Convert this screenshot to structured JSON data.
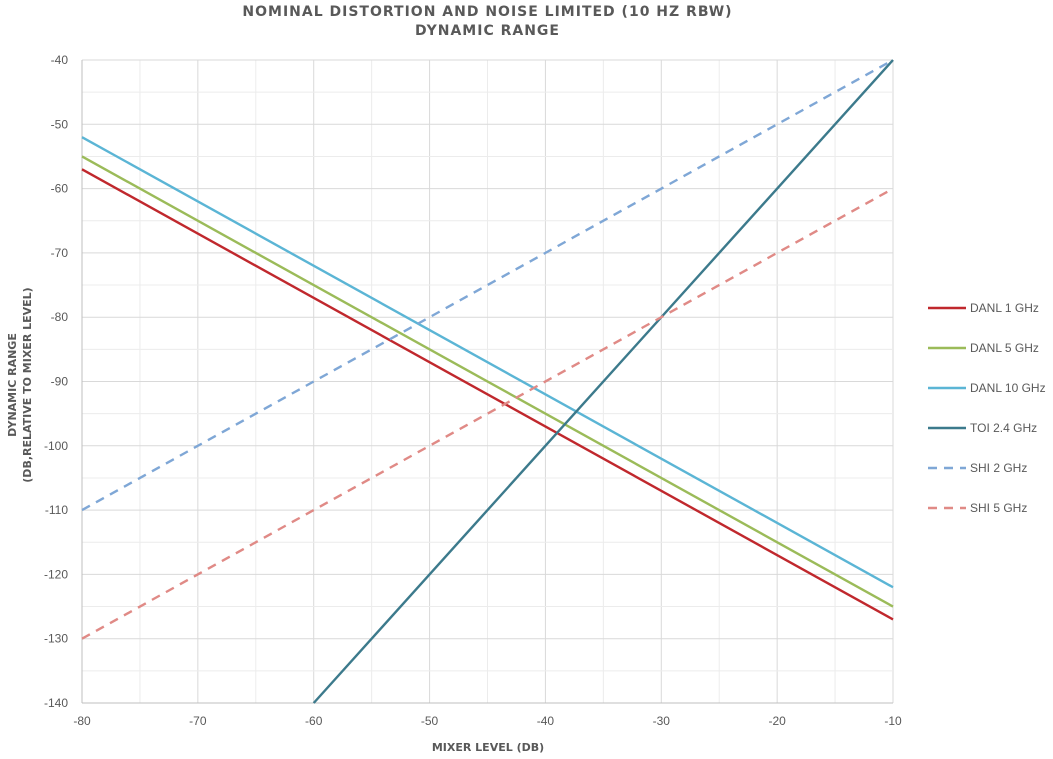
{
  "chart_data": {
    "type": "line",
    "title": "NOMINAL DISTORTION AND NOISE LIMITED (10 HZ RBW)",
    "subtitle": "DYNAMIC RANGE",
    "xlabel": "MIXER LEVEL (DB)",
    "ylabel_line1": "DYNAMIC RANGE",
    "ylabel_line2": "(DB,RELATIVE TO MIXER LEVEL)",
    "xlim": [
      -80,
      -10
    ],
    "ylim": [
      -140,
      -40
    ],
    "xticks": [
      -80,
      -70,
      -60,
      -50,
      -40,
      -30,
      -20,
      -10
    ],
    "yticks": [
      -40,
      -50,
      -60,
      -70,
      -80,
      -90,
      -100,
      -110,
      -120,
      -130,
      -140
    ],
    "grid": true,
    "legend_position": "right",
    "series": [
      {
        "name": "DANL 1 GHz",
        "color": "#c0282d",
        "dash": "solid",
        "x": [
          -80,
          -10
        ],
        "y": [
          -57,
          -127
        ]
      },
      {
        "name": "DANL 5 GHz",
        "color": "#9bbb59",
        "dash": "solid",
        "x": [
          -80,
          -10
        ],
        "y": [
          -55,
          -125
        ]
      },
      {
        "name": "DANL 10 GHz",
        "color": "#5bb5d5",
        "dash": "solid",
        "x": [
          -80,
          -10
        ],
        "y": [
          -52,
          -122
        ]
      },
      {
        "name": "TOI 2.4 GHz",
        "color": "#3c7a8c",
        "dash": "solid",
        "x": [
          -60,
          -10
        ],
        "y": [
          -140,
          -40
        ]
      },
      {
        "name": "SHI 2 GHz",
        "color": "#7fa7d6",
        "dash": "dashed",
        "x": [
          -80,
          -10
        ],
        "y": [
          -110,
          -40
        ]
      },
      {
        "name": "SHI 5 GHz",
        "color": "#e08a86",
        "dash": "dashed",
        "x": [
          -80,
          -10
        ],
        "y": [
          -130,
          -60
        ]
      }
    ]
  }
}
